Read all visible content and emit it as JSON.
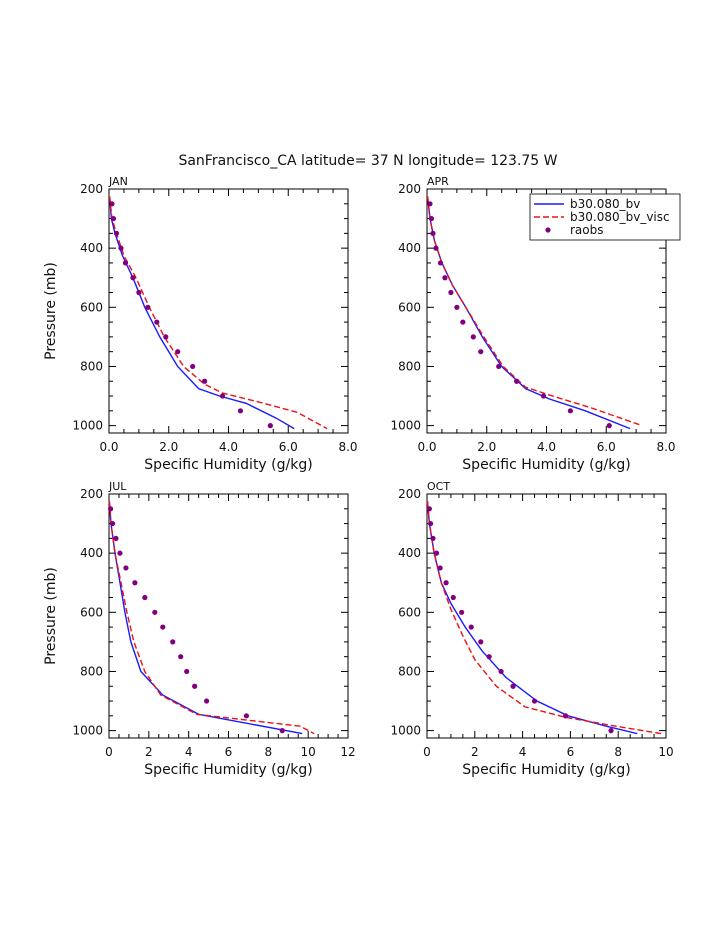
{
  "figure": {
    "title": "SanFrancisco_CA  latitude= 37 N longitude= 123.75 W"
  },
  "legend": {
    "placement": "top-right of APR panel",
    "entries": [
      {
        "label": "b30.080_bv",
        "color": "#1a1aff",
        "style": "solid"
      },
      {
        "label": "b30.080_bv_visc",
        "color": "#ee1111",
        "style": "dashed"
      },
      {
        "label": "raobs",
        "color": "#800080",
        "style": "dot"
      }
    ]
  },
  "chart_data": [
    {
      "type": "line",
      "panel": "JAN",
      "title": "JAN",
      "xlabel": "Specific Humidity (g/kg)",
      "ylabel": "Pressure (mb)",
      "xlim": [
        0,
        8
      ],
      "ylim": [
        1025,
        200
      ],
      "xticks": [
        "0.0",
        "2.0",
        "4.0",
        "6.0",
        "8.0"
      ],
      "yticks": [
        "200",
        "400",
        "600",
        "800",
        "1000"
      ],
      "series": [
        {
          "name": "b30.080_bv",
          "x": [
            0.02,
            0.08,
            0.2,
            0.45,
            0.8,
            1.2,
            1.7,
            2.3,
            3.0,
            3.7,
            4.6,
            5.6,
            6.2
          ],
          "y": [
            225,
            300,
            350,
            425,
            500,
            600,
            700,
            800,
            875,
            900,
            925,
            975,
            1010
          ]
        },
        {
          "name": "b30.080_bv_visc",
          "x": [
            0.02,
            0.1,
            0.25,
            0.5,
            0.9,
            1.35,
            1.85,
            2.5,
            3.2,
            3.8,
            5.0,
            6.3,
            7.3
          ],
          "y": [
            225,
            300,
            350,
            425,
            500,
            600,
            700,
            800,
            860,
            890,
            920,
            955,
            1010
          ]
        },
        {
          "name": "raobs",
          "x": [
            0.1,
            0.15,
            0.25,
            0.4,
            0.55,
            0.8,
            1.0,
            1.3,
            1.6,
            1.9,
            2.3,
            2.8,
            3.2,
            3.8,
            4.4,
            5.4
          ],
          "y": [
            250,
            300,
            350,
            400,
            450,
            500,
            550,
            600,
            650,
            700,
            750,
            800,
            850,
            900,
            950,
            1000
          ]
        }
      ]
    },
    {
      "type": "line",
      "panel": "APR",
      "title": "APR",
      "xlabel": "Specific Humidity (g/kg)",
      "ylabel": "",
      "xlim": [
        0,
        8
      ],
      "ylim": [
        1025,
        200
      ],
      "xticks": [
        "0.0",
        "2.0",
        "4.0",
        "6.0",
        "8.0"
      ],
      "yticks": [
        "200",
        "400",
        "600",
        "800",
        "1000"
      ],
      "series": [
        {
          "name": "b30.080_bv",
          "x": [
            0.02,
            0.1,
            0.25,
            0.5,
            0.85,
            1.3,
            1.85,
            2.5,
            3.3,
            4.1,
            5.3,
            6.8
          ],
          "y": [
            225,
            300,
            375,
            450,
            525,
            600,
            700,
            800,
            875,
            910,
            950,
            1010
          ]
        },
        {
          "name": "b30.080_bv_visc",
          "x": [
            0.02,
            0.1,
            0.25,
            0.5,
            0.85,
            1.3,
            1.9,
            2.55,
            3.3,
            4.2,
            5.5,
            7.2
          ],
          "y": [
            225,
            300,
            375,
            450,
            525,
            600,
            700,
            800,
            870,
            900,
            940,
            1000
          ]
        },
        {
          "name": "raobs",
          "x": [
            0.1,
            0.15,
            0.2,
            0.3,
            0.45,
            0.6,
            0.8,
            1.0,
            1.2,
            1.55,
            1.8,
            2.4,
            3.0,
            3.9,
            4.8,
            6.1
          ],
          "y": [
            250,
            300,
            350,
            400,
            450,
            500,
            550,
            600,
            650,
            700,
            750,
            800,
            850,
            900,
            950,
            1000
          ]
        }
      ]
    },
    {
      "type": "line",
      "panel": "JUL",
      "title": "JUL",
      "xlabel": "Specific Humidity (g/kg)",
      "ylabel": "Pressure (mb)",
      "xlim": [
        0,
        12
      ],
      "ylim": [
        1025,
        200
      ],
      "xticks": [
        "0",
        "2",
        "4",
        "6",
        "8",
        "10",
        "12"
      ],
      "yticks": [
        "200",
        "400",
        "600",
        "800",
        "1000"
      ],
      "series": [
        {
          "name": "b30.080_bv",
          "x": [
            0.02,
            0.1,
            0.3,
            0.55,
            0.8,
            1.1,
            1.6,
            2.7,
            4.5,
            9.7
          ],
          "y": [
            225,
            300,
            400,
            500,
            600,
            700,
            800,
            880,
            945,
            1010
          ]
        },
        {
          "name": "b30.080_bv_visc",
          "x": [
            0.02,
            0.1,
            0.3,
            0.6,
            0.9,
            1.25,
            1.8,
            2.6,
            4.4,
            9.6,
            10.3
          ],
          "y": [
            225,
            300,
            400,
            500,
            600,
            700,
            800,
            880,
            945,
            985,
            1010
          ]
        },
        {
          "name": "raobs",
          "x": [
            0.08,
            0.18,
            0.35,
            0.55,
            0.85,
            1.3,
            1.8,
            2.3,
            2.7,
            3.2,
            3.6,
            3.9,
            4.3,
            4.9,
            6.9,
            8.7
          ],
          "y": [
            250,
            300,
            350,
            400,
            450,
            500,
            550,
            600,
            650,
            700,
            750,
            800,
            850,
            900,
            950,
            1000
          ]
        }
      ]
    },
    {
      "type": "line",
      "panel": "OCT",
      "title": "OCT",
      "xlabel": "Specific Humidity (g/kg)",
      "ylabel": "",
      "xlim": [
        0,
        10
      ],
      "ylim": [
        1025,
        200
      ],
      "xticks": [
        "0",
        "2",
        "4",
        "6",
        "8",
        "10"
      ],
      "yticks": [
        "200",
        "400",
        "600",
        "800",
        "1000"
      ],
      "series": [
        {
          "name": "b30.080_bv",
          "x": [
            0.02,
            0.1,
            0.3,
            0.6,
            1.0,
            1.6,
            2.3,
            3.3,
            4.6,
            5.9,
            7.5,
            8.8
          ],
          "y": [
            225,
            300,
            400,
            500,
            570,
            650,
            730,
            820,
            900,
            950,
            985,
            1010
          ]
        },
        {
          "name": "b30.080_bv_visc",
          "x": [
            0.02,
            0.1,
            0.3,
            0.6,
            1.0,
            1.5,
            2.0,
            2.9,
            4.1,
            5.8,
            7.9,
            9.8
          ],
          "y": [
            225,
            300,
            400,
            500,
            590,
            680,
            760,
            850,
            920,
            955,
            985,
            1010
          ]
        },
        {
          "name": "raobs",
          "x": [
            0.1,
            0.15,
            0.25,
            0.4,
            0.55,
            0.8,
            1.1,
            1.45,
            1.85,
            2.25,
            2.6,
            3.1,
            3.6,
            4.5,
            5.8,
            7.7
          ],
          "y": [
            250,
            300,
            350,
            400,
            450,
            500,
            550,
            600,
            650,
            700,
            750,
            800,
            850,
            900,
            950,
            1000
          ]
        }
      ]
    }
  ]
}
